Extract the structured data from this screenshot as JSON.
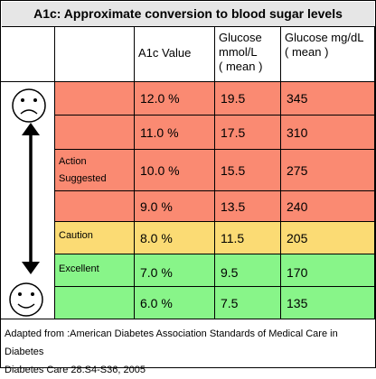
{
  "title": "A1c:  Approximate conversion to blood sugar levels",
  "headers": {
    "a1c": "A1c Value",
    "mmol": [
      "Glucose",
      "mmol/L",
      "( mean )"
    ],
    "mgdl": [
      "Glucose mg/dL",
      "( mean )"
    ]
  },
  "rows": [
    {
      "label": "",
      "a1c": "12.0 %",
      "mmol": "19.5",
      "mgdl": "345"
    },
    {
      "label": "",
      "a1c": "11.0 %",
      "mmol": "17.5",
      "mgdl": "310"
    },
    {
      "label": "Action Suggested",
      "a1c": "10.0 %",
      "mmol": "15.5",
      "mgdl": "275"
    },
    {
      "label": "",
      "a1c": "9.0 %",
      "mmol": "13.5",
      "mgdl": "240"
    },
    {
      "label": "Caution",
      "a1c": "8.0 %",
      "mmol": "11.5",
      "mgdl": "205"
    },
    {
      "label": "Excellent",
      "a1c": "7.0 %",
      "mmol": "9.5",
      "mgdl": "170"
    },
    {
      "label": "",
      "a1c": "6.0 %",
      "mmol": "7.5",
      "mgdl": "135"
    }
  ],
  "labels": {
    "action": [
      "Action",
      "Suggested"
    ],
    "caution": "Caution",
    "excellent": "Excellent"
  },
  "footer": [
    "Adapted from :American Diabetes Association Standards of Medical Care in Diabetes",
    "Diabetes Care 28:S4-S36, 2005"
  ],
  "colors": {
    "action": "#fa8a72",
    "caution": "#fbdb74",
    "excellent": "#88f589",
    "title_bg": "#e6e6e6"
  },
  "icons": [
    "sad-face-icon",
    "double-arrow-icon",
    "happy-face-icon"
  ]
}
